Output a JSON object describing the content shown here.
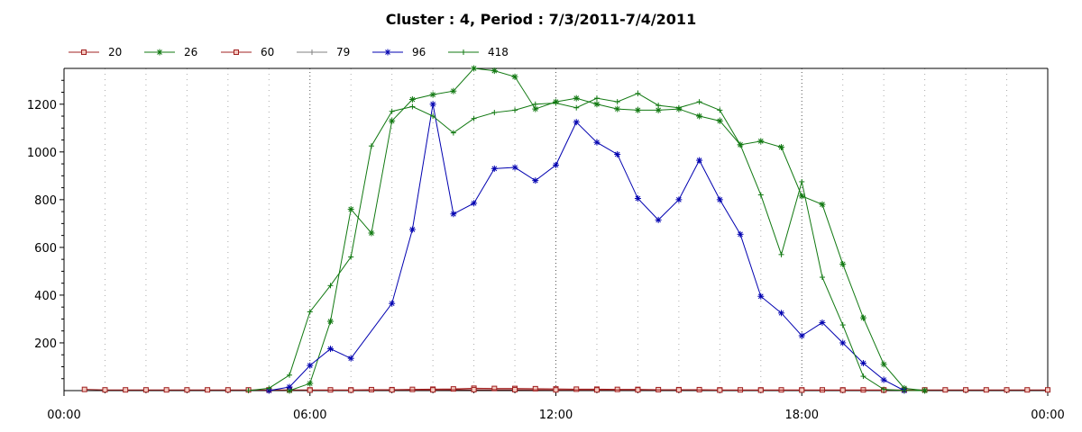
{
  "chart_data": {
    "type": "line",
    "title": "Cluster : 4, Period : 7/3/2011-7/4/2011",
    "xlabel": "",
    "ylabel": "",
    "x_tick_labels": [
      "00:00",
      "06:00",
      "12:00",
      "18:00",
      "00:00"
    ],
    "x_range_hours": [
      0,
      24
    ],
    "ylim": [
      0,
      1350
    ],
    "y_ticks": [
      200,
      400,
      600,
      800,
      1000,
      1200
    ],
    "grid": "vertical dotted",
    "legend_position": "top-left",
    "series": [
      {
        "name": "20",
        "color": "#a02020",
        "marker": "square",
        "points": [
          [
            0.5,
            5
          ],
          [
            1,
            3
          ],
          [
            1.5,
            3
          ],
          [
            2,
            3
          ],
          [
            2.5,
            3
          ],
          [
            3,
            3
          ],
          [
            3.5,
            3
          ],
          [
            4,
            3
          ],
          [
            4.5,
            3
          ],
          [
            5,
            3
          ],
          [
            5.5,
            3
          ],
          [
            6,
            3
          ],
          [
            6.5,
            3
          ],
          [
            7,
            3
          ],
          [
            7.5,
            4
          ],
          [
            8,
            4
          ],
          [
            8.5,
            5
          ],
          [
            9,
            6
          ],
          [
            9.5,
            7
          ],
          [
            10,
            10
          ],
          [
            10.5,
            9
          ],
          [
            11,
            9
          ],
          [
            11.5,
            8
          ],
          [
            12,
            7
          ],
          [
            12.5,
            6
          ],
          [
            13,
            6
          ],
          [
            13.5,
            5
          ],
          [
            14,
            5
          ],
          [
            14.5,
            4
          ],
          [
            15,
            4
          ],
          [
            15.5,
            4
          ],
          [
            16,
            3
          ],
          [
            16.5,
            3
          ],
          [
            17,
            3
          ],
          [
            17.5,
            3
          ],
          [
            18,
            3
          ],
          [
            18.5,
            3
          ],
          [
            19,
            3
          ],
          [
            19.5,
            3
          ],
          [
            20,
            3
          ],
          [
            20.5,
            3
          ],
          [
            21,
            3
          ],
          [
            21.5,
            3
          ],
          [
            22,
            3
          ],
          [
            22.5,
            3
          ],
          [
            23,
            3
          ],
          [
            23.5,
            3
          ],
          [
            24,
            3
          ]
        ]
      },
      {
        "name": "26",
        "color": "#107810",
        "marker": "star",
        "points": [
          [
            5.5,
            0
          ],
          [
            6,
            30
          ],
          [
            6.5,
            290
          ],
          [
            7,
            760
          ],
          [
            7.5,
            660
          ],
          [
            8,
            1130
          ],
          [
            8.5,
            1220
          ],
          [
            9,
            1240
          ],
          [
            9.5,
            1255
          ],
          [
            10,
            1350
          ],
          [
            10.5,
            1340
          ],
          [
            11,
            1315
          ],
          [
            11.5,
            1180
          ],
          [
            12,
            1210
          ],
          [
            12.5,
            1225
          ],
          [
            13,
            1200
          ],
          [
            13.5,
            1180
          ],
          [
            14,
            1175
          ],
          [
            14.5,
            1175
          ],
          [
            15,
            1180
          ],
          [
            15.5,
            1150
          ],
          [
            16,
            1130
          ],
          [
            16.5,
            1030
          ],
          [
            17,
            1045
          ],
          [
            17.5,
            1020
          ],
          [
            18,
            815
          ],
          [
            18.5,
            780
          ],
          [
            19,
            530
          ],
          [
            19.5,
            305
          ],
          [
            20,
            110
          ],
          [
            20.5,
            10
          ],
          [
            21,
            0
          ]
        ]
      },
      {
        "name": "60",
        "color": "#a02020",
        "marker": "square",
        "points": [
          [
            6,
            2
          ],
          [
            7,
            2
          ],
          [
            8,
            3
          ],
          [
            9,
            3
          ],
          [
            10,
            4
          ],
          [
            11,
            4
          ],
          [
            12,
            3
          ],
          [
            13,
            3
          ],
          [
            14,
            3
          ],
          [
            15,
            3
          ],
          [
            16,
            2
          ],
          [
            17,
            2
          ],
          [
            18,
            2
          ],
          [
            19,
            2
          ],
          [
            20,
            2
          ]
        ]
      },
      {
        "name": "79",
        "color": "#808080",
        "marker": "plus",
        "points": []
      },
      {
        "name": "96",
        "color": "#0000b0",
        "marker": "star",
        "points": [
          [
            5,
            0
          ],
          [
            5.5,
            15
          ],
          [
            6,
            105
          ],
          [
            6.5,
            175
          ],
          [
            7,
            135
          ],
          [
            8,
            365
          ],
          [
            8.5,
            675
          ],
          [
            9,
            1200
          ],
          [
            9.5,
            740
          ],
          [
            10,
            785
          ],
          [
            10.5,
            930
          ],
          [
            11,
            935
          ],
          [
            11.5,
            880
          ],
          [
            12,
            945
          ],
          [
            12.5,
            1125
          ],
          [
            13,
            1040
          ],
          [
            13.5,
            990
          ],
          [
            14,
            805
          ],
          [
            14.5,
            715
          ],
          [
            15,
            800
          ],
          [
            15.5,
            965
          ],
          [
            16,
            800
          ],
          [
            16.5,
            655
          ],
          [
            17,
            395
          ],
          [
            17.5,
            325
          ],
          [
            18,
            230
          ],
          [
            18.5,
            285
          ],
          [
            19,
            200
          ],
          [
            19.5,
            115
          ],
          [
            20,
            45
          ],
          [
            20.5,
            0
          ]
        ]
      },
      {
        "name": "418",
        "color": "#107810",
        "marker": "plus",
        "points": [
          [
            4.5,
            0
          ],
          [
            5,
            10
          ],
          [
            5.5,
            65
          ],
          [
            6,
            330
          ],
          [
            6.5,
            440
          ],
          [
            7,
            560
          ],
          [
            7.5,
            1025
          ],
          [
            8,
            1170
          ],
          [
            8.5,
            1190
          ],
          [
            9,
            1150
          ],
          [
            9.5,
            1080
          ],
          [
            10,
            1140
          ],
          [
            10.5,
            1165
          ],
          [
            11,
            1175
          ],
          [
            11.5,
            1200
          ],
          [
            12,
            1205
          ],
          [
            12.5,
            1185
          ],
          [
            13,
            1225
          ],
          [
            13.5,
            1210
          ],
          [
            14,
            1245
          ],
          [
            14.5,
            1195
          ],
          [
            15,
            1185
          ],
          [
            15.5,
            1210
          ],
          [
            16,
            1175
          ],
          [
            16.5,
            1030
          ],
          [
            17,
            820
          ],
          [
            17.5,
            570
          ],
          [
            18,
            875
          ],
          [
            18.5,
            475
          ],
          [
            19,
            275
          ],
          [
            19.5,
            60
          ],
          [
            20,
            5
          ],
          [
            20.5,
            0
          ],
          [
            21,
            0
          ]
        ]
      }
    ]
  }
}
